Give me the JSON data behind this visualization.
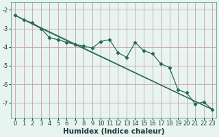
{
  "xlabel": "Humidex (Indice chaleur)",
  "bg_color": "#e8f4f0",
  "grid_color": "#c8a0a0",
  "line_color": "#2a6a5a",
  "xlim": [
    -0.5,
    23.5
  ],
  "ylim": [
    -7.8,
    -1.6
  ],
  "yticks": [
    -7,
    -6,
    -5,
    -4,
    -3,
    -2
  ],
  "xticks": [
    0,
    1,
    2,
    3,
    4,
    5,
    6,
    7,
    8,
    9,
    10,
    11,
    12,
    13,
    14,
    15,
    16,
    17,
    18,
    19,
    20,
    21,
    22,
    23
  ],
  "series1_x": [
    0,
    1,
    2,
    3,
    4,
    5,
    6,
    7,
    8,
    9,
    10,
    11,
    12,
    13,
    14,
    15,
    16,
    17,
    18,
    19,
    20,
    21,
    22,
    23
  ],
  "series1_y": [
    -2.3,
    -2.55,
    -2.7,
    -3.0,
    -3.5,
    -3.6,
    -3.75,
    -3.85,
    -3.95,
    -4.05,
    -3.7,
    -3.6,
    -4.3,
    -4.55,
    -3.75,
    -4.2,
    -4.35,
    -4.9,
    -5.1,
    -6.3,
    -6.45,
    -7.05,
    -6.95,
    -7.35
  ],
  "refline1_x": [
    0,
    23
  ],
  "refline1_y": [
    -2.3,
    -7.35
  ],
  "refline2_x": [
    0,
    3,
    23
  ],
  "refline2_y": [
    -2.3,
    -3.0,
    -7.35
  ],
  "tick_fontsize": 6,
  "label_fontsize": 7.5,
  "label_color": "#1a3a3a"
}
